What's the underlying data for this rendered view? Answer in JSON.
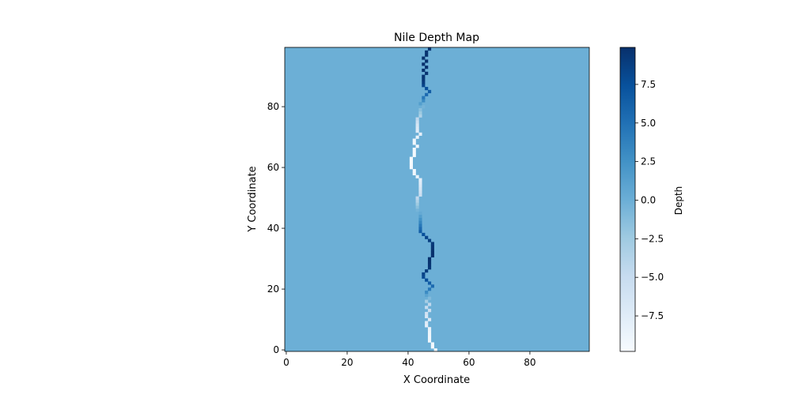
{
  "chart_data": {
    "type": "heatmap",
    "title": "Nile Depth Map",
    "xlabel": "X Coordinate",
    "ylabel": "Y Coordinate",
    "xlim": [
      0,
      99
    ],
    "ylim": [
      0,
      99
    ],
    "x_ticks": [
      0,
      20,
      40,
      60,
      80
    ],
    "y_ticks": [
      0,
      20,
      40,
      60,
      80
    ],
    "grid": false,
    "colormap": "Blues",
    "background_value": 0.0,
    "colorbar": {
      "label": "Depth",
      "range": [
        -9.8,
        9.9
      ],
      "ticks": [
        -7.5,
        -5.0,
        -2.5,
        0.0,
        2.5,
        5.0,
        7.5
      ],
      "tick_labels": [
        "−7.5",
        "−5.0",
        "−2.5",
        "0.0",
        "2.5",
        "5.0",
        "7.5"
      ]
    },
    "river": [
      {
        "y": 0,
        "x": 49,
        "depth": -9.5
      },
      {
        "y": 1,
        "x": 48,
        "depth": -9.5
      },
      {
        "y": 2,
        "x": 48,
        "depth": -9.3
      },
      {
        "y": 3,
        "x": 47,
        "depth": -9.3
      },
      {
        "y": 4,
        "x": 47,
        "depth": -9.2
      },
      {
        "y": 5,
        "x": 47,
        "depth": -9.0
      },
      {
        "y": 6,
        "x": 47,
        "depth": -8.8
      },
      {
        "y": 7,
        "x": 47,
        "depth": -8.6
      },
      {
        "y": 8,
        "x": 46,
        "depth": -8.0
      },
      {
        "y": 9,
        "x": 46,
        "depth": -7.5
      },
      {
        "y": 10,
        "x": 47,
        "depth": -7.0
      },
      {
        "y": 11,
        "x": 46,
        "depth": -6.5
      },
      {
        "y": 12,
        "x": 46,
        "depth": -6.0
      },
      {
        "y": 13,
        "x": 47,
        "depth": -5.5
      },
      {
        "y": 14,
        "x": 46,
        "depth": -5.0
      },
      {
        "y": 15,
        "x": 47,
        "depth": -4.5
      },
      {
        "y": 16,
        "x": 46,
        "depth": -3.0
      },
      {
        "y": 17,
        "x": 47,
        "depth": -1.0
      },
      {
        "y": 18,
        "x": 46,
        "depth": 1.0
      },
      {
        "y": 19,
        "x": 46,
        "depth": 3.0
      },
      {
        "y": 20,
        "x": 47,
        "depth": 4.5
      },
      {
        "y": 21,
        "x": 48,
        "depth": 5.5
      },
      {
        "y": 22,
        "x": 47,
        "depth": 6.5
      },
      {
        "y": 23,
        "x": 46,
        "depth": 7.5
      },
      {
        "y": 24,
        "x": 45,
        "depth": 8.0
      },
      {
        "y": 25,
        "x": 45,
        "depth": 8.5
      },
      {
        "y": 26,
        "x": 46,
        "depth": 9.0
      },
      {
        "y": 27,
        "x": 47,
        "depth": 9.3
      },
      {
        "y": 28,
        "x": 47,
        "depth": 9.5
      },
      {
        "y": 29,
        "x": 47,
        "depth": 9.7
      },
      {
        "y": 30,
        "x": 47,
        "depth": 9.8
      },
      {
        "y": 31,
        "x": 48,
        "depth": 9.8
      },
      {
        "y": 32,
        "x": 48,
        "depth": 9.8
      },
      {
        "y": 33,
        "x": 48,
        "depth": 9.7
      },
      {
        "y": 34,
        "x": 48,
        "depth": 9.5
      },
      {
        "y": 35,
        "x": 48,
        "depth": 9.2
      },
      {
        "y": 36,
        "x": 47,
        "depth": 8.8
      },
      {
        "y": 37,
        "x": 46,
        "depth": 8.3
      },
      {
        "y": 38,
        "x": 45,
        "depth": 7.5
      },
      {
        "y": 39,
        "x": 44,
        "depth": 6.5
      },
      {
        "y": 40,
        "x": 44,
        "depth": 5.5
      },
      {
        "y": 41,
        "x": 44,
        "depth": 4.5
      },
      {
        "y": 42,
        "x": 44,
        "depth": 3.5
      },
      {
        "y": 43,
        "x": 44,
        "depth": 2.5
      },
      {
        "y": 44,
        "x": 44,
        "depth": 1.5
      },
      {
        "y": 45,
        "x": 44,
        "depth": 0.5
      },
      {
        "y": 46,
        "x": 43,
        "depth": -0.5
      },
      {
        "y": 47,
        "x": 43,
        "depth": -1.5
      },
      {
        "y": 48,
        "x": 43,
        "depth": -2.5
      },
      {
        "y": 49,
        "x": 43,
        "depth": -3.5
      },
      {
        "y": 50,
        "x": 43,
        "depth": -4.5
      },
      {
        "y": 51,
        "x": 44,
        "depth": -5.5
      },
      {
        "y": 52,
        "x": 44,
        "depth": -6.0
      },
      {
        "y": 53,
        "x": 44,
        "depth": -6.5
      },
      {
        "y": 54,
        "x": 44,
        "depth": -7.0
      },
      {
        "y": 55,
        "x": 44,
        "depth": -7.5
      },
      {
        "y": 56,
        "x": 44,
        "depth": -8.0
      },
      {
        "y": 57,
        "x": 43,
        "depth": -8.5
      },
      {
        "y": 58,
        "x": 42,
        "depth": -9.0
      },
      {
        "y": 59,
        "x": 42,
        "depth": -9.2
      },
      {
        "y": 60,
        "x": 41,
        "depth": -9.4
      },
      {
        "y": 61,
        "x": 41,
        "depth": -9.5
      },
      {
        "y": 62,
        "x": 41,
        "depth": -9.6
      },
      {
        "y": 63,
        "x": 41,
        "depth": -9.6
      },
      {
        "y": 64,
        "x": 42,
        "depth": -9.5
      },
      {
        "y": 65,
        "x": 42,
        "depth": -9.4
      },
      {
        "y": 66,
        "x": 42,
        "depth": -9.3
      },
      {
        "y": 67,
        "x": 43,
        "depth": -9.2
      },
      {
        "y": 68,
        "x": 42,
        "depth": -9.0
      },
      {
        "y": 69,
        "x": 42,
        "depth": -8.8
      },
      {
        "y": 70,
        "x": 43,
        "depth": -8.5
      },
      {
        "y": 71,
        "x": 44,
        "depth": -8.0
      },
      {
        "y": 72,
        "x": 43,
        "depth": -7.5
      },
      {
        "y": 73,
        "x": 43,
        "depth": -7.0
      },
      {
        "y": 74,
        "x": 43,
        "depth": -6.5
      },
      {
        "y": 75,
        "x": 43,
        "depth": -5.5
      },
      {
        "y": 76,
        "x": 43,
        "depth": -4.5
      },
      {
        "y": 77,
        "x": 44,
        "depth": -3.5
      },
      {
        "y": 78,
        "x": 44,
        "depth": -2.5
      },
      {
        "y": 79,
        "x": 44,
        "depth": -1.5
      },
      {
        "y": 80,
        "x": 45,
        "depth": -0.5
      },
      {
        "y": 81,
        "x": 44,
        "depth": 1.5
      },
      {
        "y": 82,
        "x": 45,
        "depth": 3.0
      },
      {
        "y": 83,
        "x": 45,
        "depth": 4.5
      },
      {
        "y": 84,
        "x": 46,
        "depth": 5.5
      },
      {
        "y": 85,
        "x": 47,
        "depth": 6.5
      },
      {
        "y": 86,
        "x": 46,
        "depth": 7.5
      },
      {
        "y": 87,
        "x": 45,
        "depth": 8.3
      },
      {
        "y": 88,
        "x": 45,
        "depth": 9.0
      },
      {
        "y": 89,
        "x": 45,
        "depth": 9.3
      },
      {
        "y": 90,
        "x": 45,
        "depth": 9.5
      },
      {
        "y": 91,
        "x": 46,
        "depth": 9.6
      },
      {
        "y": 92,
        "x": 45,
        "depth": 9.7
      },
      {
        "y": 93,
        "x": 46,
        "depth": 9.8
      },
      {
        "y": 94,
        "x": 45,
        "depth": 9.8
      },
      {
        "y": 95,
        "x": 46,
        "depth": 9.8
      },
      {
        "y": 96,
        "x": 45,
        "depth": 9.7
      },
      {
        "y": 97,
        "x": 46,
        "depth": 9.7
      },
      {
        "y": 98,
        "x": 46,
        "depth": 9.6
      },
      {
        "y": 99,
        "x": 47,
        "depth": 9.5
      }
    ]
  }
}
